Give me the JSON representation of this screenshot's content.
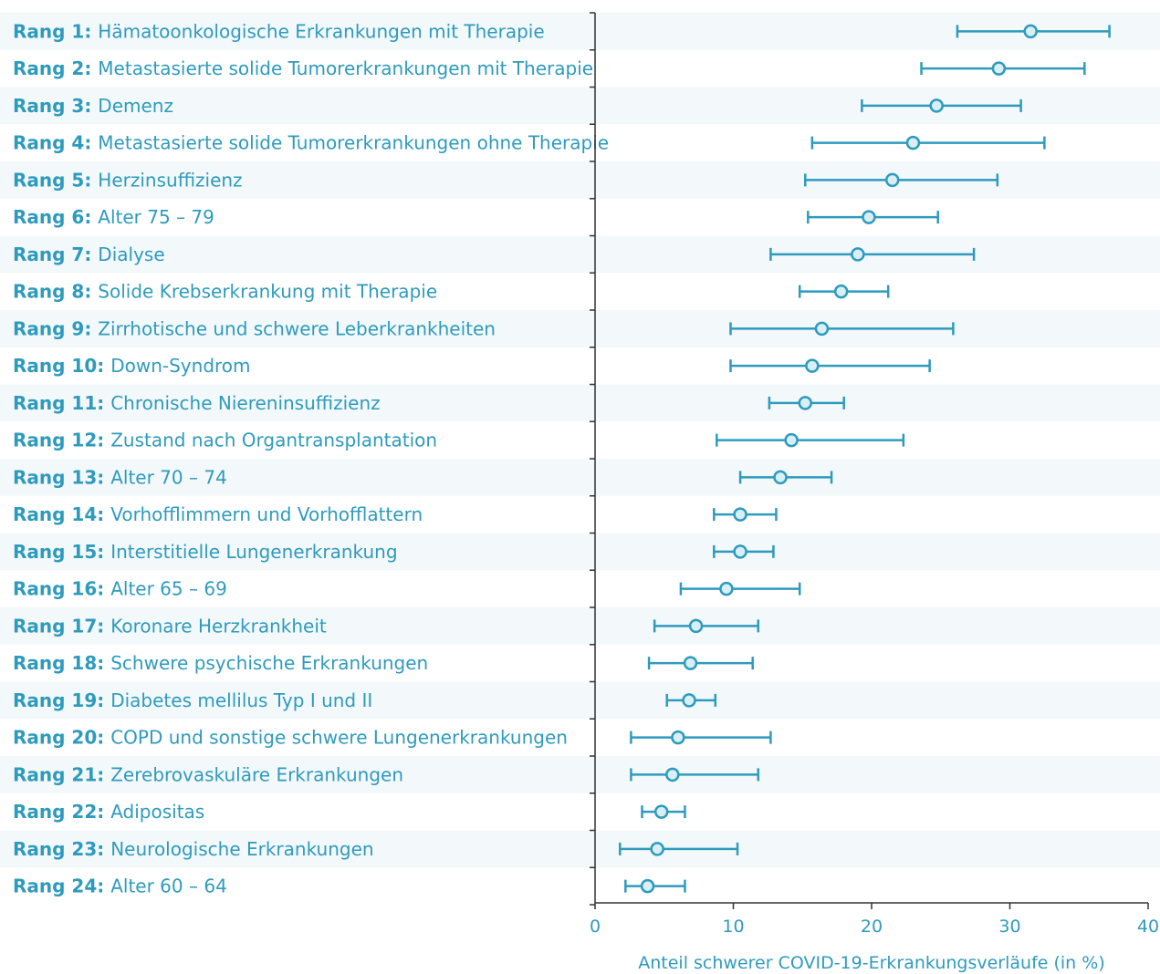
{
  "colors": {
    "accent": "#2e9bbd",
    "row_stripe": "#f3f8fb",
    "axis": "#333333"
  },
  "chart_data": {
    "type": "forest-plot",
    "xlabel": "Anteil schwerer COVID-19-Erkrankungsverläufe (in %)",
    "xlim": [
      0,
      40
    ],
    "xticks": [
      "0",
      "10",
      "20",
      "30",
      "40"
    ],
    "rows": [
      {
        "rank": "Rang 1:",
        "label": "Hämatoonkologische Erkrankungen mit Therapie",
        "value": 31.5,
        "low": 26.2,
        "high": 37.2
      },
      {
        "rank": "Rang 2:",
        "label": "Metastasierte solide Tumorerkrankungen mit Therapie",
        "value": 29.2,
        "low": 23.6,
        "high": 35.4
      },
      {
        "rank": "Rang 3:",
        "label": "Demenz",
        "value": 24.7,
        "low": 19.3,
        "high": 30.8
      },
      {
        "rank": "Rang 4:",
        "label": "Metastasierte solide Tumorerkrankungen ohne Therapie",
        "value": 23.0,
        "low": 15.7,
        "high": 32.5
      },
      {
        "rank": "Rang 5:",
        "label": "Herzinsuffizienz",
        "value": 21.5,
        "low": 15.2,
        "high": 29.1
      },
      {
        "rank": "Rang 6:",
        "label": "Alter 75 – 79",
        "value": 19.8,
        "low": 15.4,
        "high": 24.8
      },
      {
        "rank": "Rang 7:",
        "label": "Dialyse",
        "value": 19.0,
        "low": 12.7,
        "high": 27.4
      },
      {
        "rank": "Rang 8:",
        "label": "Solide Krebserkrankung mit Therapie",
        "value": 17.8,
        "low": 14.8,
        "high": 21.2
      },
      {
        "rank": "Rang 9:",
        "label": "Zirrhotische und schwere Leberkrankheiten",
        "value": 16.4,
        "low": 9.8,
        "high": 25.9
      },
      {
        "rank": "Rang 10:",
        "label": "Down-Syndrom",
        "value": 15.7,
        "low": 9.8,
        "high": 24.2
      },
      {
        "rank": "Rang 11:",
        "label": "Chronische Niereninsuffizienz",
        "value": 15.2,
        "low": 12.6,
        "high": 18.0
      },
      {
        "rank": "Rang 12:",
        "label": "Zustand nach Organtransplantation",
        "value": 14.2,
        "low": 8.8,
        "high": 22.3
      },
      {
        "rank": "Rang 13:",
        "label": "Alter 70 – 74",
        "value": 13.4,
        "low": 10.5,
        "high": 17.1
      },
      {
        "rank": "Rang 14:",
        "label": "Vorhofflimmern und Vorhofflattern",
        "value": 10.5,
        "low": 8.6,
        "high": 13.1
      },
      {
        "rank": "Rang 15:",
        "label": "Interstitielle Lungenerkrankung",
        "value": 10.5,
        "low": 8.6,
        "high": 12.9
      },
      {
        "rank": "Rang 16:",
        "label": "Alter 65 – 69",
        "value": 9.5,
        "low": 6.2,
        "high": 14.8
      },
      {
        "rank": "Rang 17:",
        "label": "Koronare Herzkrankheit",
        "value": 7.3,
        "low": 4.3,
        "high": 11.8
      },
      {
        "rank": "Rang 18:",
        "label": "Schwere psychische Erkrankungen",
        "value": 6.9,
        "low": 3.9,
        "high": 11.4
      },
      {
        "rank": "Rang 19:",
        "label": "Diabetes mellilus Typ I und II",
        "value": 6.8,
        "low": 5.2,
        "high": 8.7
      },
      {
        "rank": "Rang 20:",
        "label": "COPD und sonstige schwere Lungenerkrankungen",
        "value": 6.0,
        "low": 2.6,
        "high": 12.7
      },
      {
        "rank": "Rang 21:",
        "label": "Zerebrovaskuläre Erkrankungen",
        "value": 5.6,
        "low": 2.6,
        "high": 11.8
      },
      {
        "rank": "Rang 22:",
        "label": "Adipositas",
        "value": 4.8,
        "low": 3.4,
        "high": 6.5
      },
      {
        "rank": "Rang 23:",
        "label": "Neurologische Erkrankungen",
        "value": 4.5,
        "low": 1.8,
        "high": 10.3
      },
      {
        "rank": "Rang 24:",
        "label": "Alter 60 – 64",
        "value": 3.8,
        "low": 2.2,
        "high": 6.5
      }
    ]
  }
}
